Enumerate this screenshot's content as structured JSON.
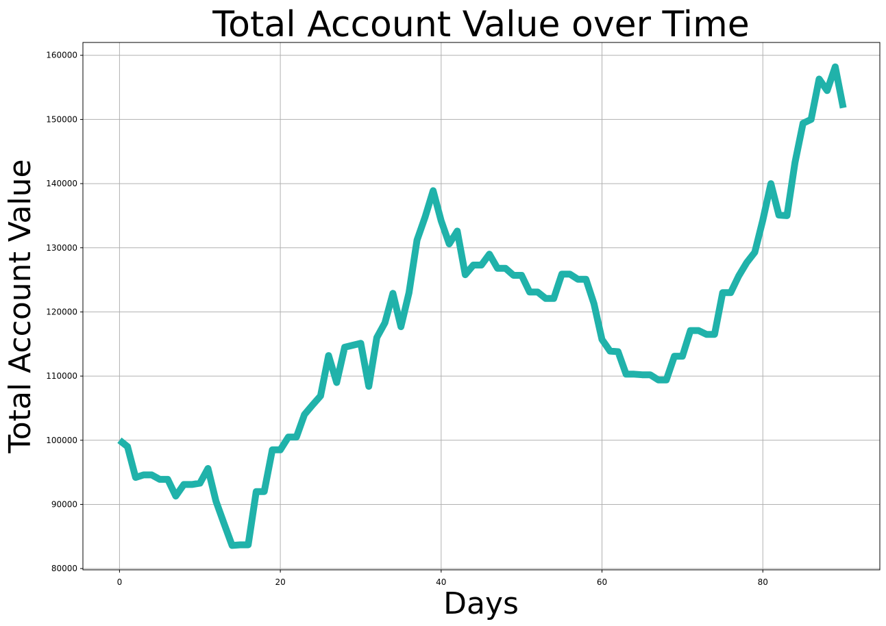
{
  "chart_data": {
    "type": "line",
    "title": "Total Account Value over Time",
    "xlabel": "Days",
    "ylabel": "Total Account Value",
    "xlim": [
      -4.55,
      94.55
    ],
    "ylim": [
      79800,
      162000
    ],
    "xticks": [
      0,
      20,
      40,
      60,
      80
    ],
    "yticks": [
      80000,
      90000,
      100000,
      110000,
      120000,
      130000,
      140000,
      150000,
      160000
    ],
    "grid": true,
    "line_color": "#20b2aa",
    "series": [
      {
        "x": [
          0,
          1,
          2,
          3,
          4,
          5,
          6,
          7,
          8,
          9,
          10,
          11,
          12,
          13,
          14,
          15,
          16,
          17,
          18,
          19,
          20,
          21,
          22,
          23,
          24,
          25,
          26,
          27,
          28,
          29,
          30,
          31,
          32,
          33,
          34,
          35,
          36,
          37,
          38,
          39,
          40,
          41,
          42,
          43,
          44,
          45,
          46,
          47,
          48,
          49,
          50,
          51,
          52,
          53,
          54,
          55,
          56,
          57,
          58,
          59,
          60,
          61,
          62,
          63,
          64,
          65,
          66,
          67,
          68,
          69,
          70,
          71,
          72,
          73,
          74,
          75,
          76,
          77,
          78,
          79,
          80,
          81,
          82,
          83,
          84,
          85,
          86,
          87,
          88,
          89,
          90
        ],
        "values": [
          100000,
          99000,
          94200,
          94600,
          94600,
          93900,
          93900,
          91300,
          93100,
          93100,
          93300,
          95600,
          90500,
          87000,
          83600,
          83700,
          83700,
          92000,
          92000,
          98500,
          98500,
          100500,
          100500,
          104000,
          105500,
          106900,
          113200,
          109000,
          114500,
          114800,
          115100,
          108400,
          116000,
          118300,
          122900,
          117700,
          123000,
          131200,
          134800,
          138900,
          134200,
          130600,
          132600,
          125800,
          127300,
          127300,
          129000,
          126800,
          126800,
          125700,
          125700,
          123100,
          123100,
          122100,
          122100,
          125900,
          125900,
          125100,
          125100,
          121300,
          115700,
          113900,
          113800,
          110300,
          110300,
          110200,
          110200,
          109400,
          109400,
          113100,
          113100,
          117100,
          117100,
          116500,
          116500,
          123000,
          123000,
          125600,
          127700,
          129300,
          134300,
          140000,
          135100,
          135000,
          143300,
          149400,
          150000,
          156300,
          154500,
          158200,
          151800
        ]
      }
    ]
  }
}
